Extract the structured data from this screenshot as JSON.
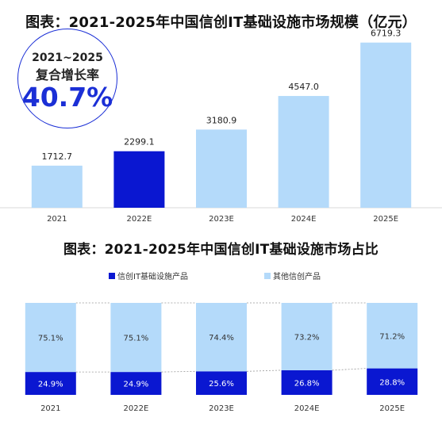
{
  "titles": {
    "chart1": "图表：2021-2025年中国信创IT基础设施市场规模（亿元）",
    "chart2": "图表：2021-2025年中国信创IT基础设施市场占比"
  },
  "badge": {
    "line1": "2021~2025",
    "line2": "复合增长率",
    "value": "40.7%"
  },
  "colors": {
    "highlight": "#0a17d1",
    "light": "#b4dafa",
    "badge_border": "#1b2fd6"
  },
  "chart_data": [
    {
      "type": "bar",
      "categories": [
        "2021",
        "2022E",
        "2023E",
        "2024E",
        "2025E"
      ],
      "values": [
        1712.7,
        2299.1,
        3180.9,
        4547.0,
        6719.3
      ],
      "value_labels": [
        "1712.7",
        "2299.1",
        "3180.9",
        "4547.0",
        "6719.3"
      ],
      "highlight_index": 1,
      "title": "图表：2021-2025年中国信创IT基础设施市场规模（亿元）",
      "xlabel": "",
      "ylabel": "",
      "ylim": [
        0,
        7000
      ],
      "grid": false
    },
    {
      "type": "bar",
      "stacked": true,
      "categories": [
        "2021",
        "2022E",
        "2023E",
        "2024E",
        "2025E"
      ],
      "series": [
        {
          "name": "信创IT基础设施产品",
          "values": [
            24.9,
            24.9,
            25.6,
            26.8,
            28.8
          ],
          "labels": [
            "24.9%",
            "24.9%",
            "25.6%",
            "26.8%",
            "28.8%"
          ],
          "color": "#0a17d1"
        },
        {
          "name": "其他信创产品",
          "values": [
            75.1,
            75.1,
            74.4,
            73.2,
            71.2
          ],
          "labels": [
            "75.1%",
            "75.1%",
            "74.4%",
            "73.2%",
            "71.2%"
          ],
          "color": "#b4dafa"
        }
      ],
      "title": "图表：2021-2025年中国信创IT基础设施市场占比",
      "ylim": [
        0,
        100
      ],
      "legend": "top-center",
      "grid": false
    }
  ]
}
